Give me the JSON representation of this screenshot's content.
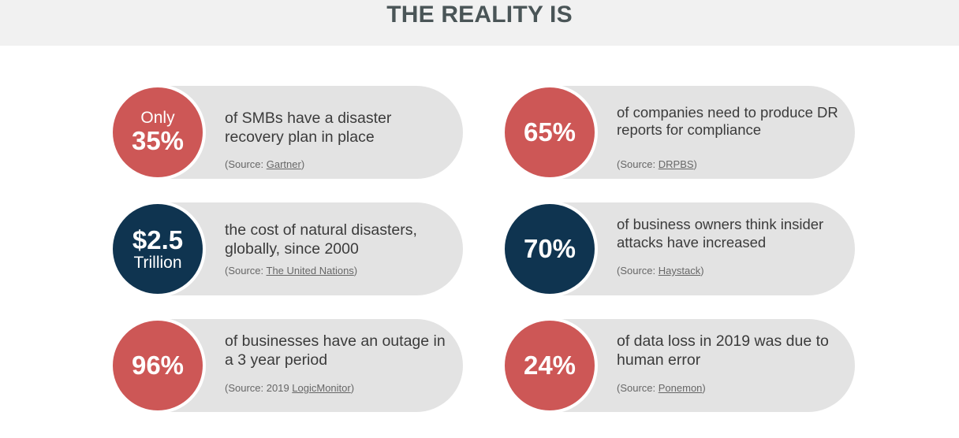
{
  "header": {
    "title": "THE REALITY IS"
  },
  "stats": [
    {
      "pre": "Only",
      "value": "35%",
      "post": "",
      "description": "of  SMBs have a disaster recovery plan in place",
      "source_prefix": "(Source: ",
      "source_pre_link": "",
      "source_link": "Gartner",
      "source_suffix": ")"
    },
    {
      "pre": "",
      "value": "65%",
      "post": "",
      "description": "of companies need to produce DR reports for compliance",
      "source_prefix": "(Source: ",
      "source_pre_link": "",
      "source_link": "DRPBS",
      "source_suffix": ")"
    },
    {
      "pre": "",
      "value": "$2.5",
      "post": "Trillion",
      "description": "the cost of natural disasters, globally, since 2000",
      "source_prefix": "(Source: ",
      "source_pre_link": "",
      "source_link": "The United Nations",
      "source_suffix": ")"
    },
    {
      "pre": "",
      "value": "70%",
      "post": "",
      "description": "of business owners think insider attacks have increased",
      "source_prefix": "(Source: ",
      "source_pre_link": "",
      "source_link": "Haystack",
      "source_suffix": ")"
    },
    {
      "pre": "",
      "value": "96%",
      "post": "",
      "description": "of businesses have an outage in a 3 year period",
      "source_prefix": "(Source: ",
      "source_pre_link": "2019 ",
      "source_link": "LogicMonitor",
      "source_suffix": ")"
    },
    {
      "pre": "",
      "value": "24%",
      "post": "",
      "description": "of data loss in 2019 was due to human error",
      "source_prefix": "(Source: ",
      "source_pre_link": "",
      "source_link": "Ponemon",
      "source_suffix": ")"
    }
  ],
  "colors": {
    "red": "#cd5756",
    "navy": "#0f3450",
    "pill": "#e3e3e3",
    "header_bg": "#f1f1f1",
    "title": "#4a5557"
  }
}
